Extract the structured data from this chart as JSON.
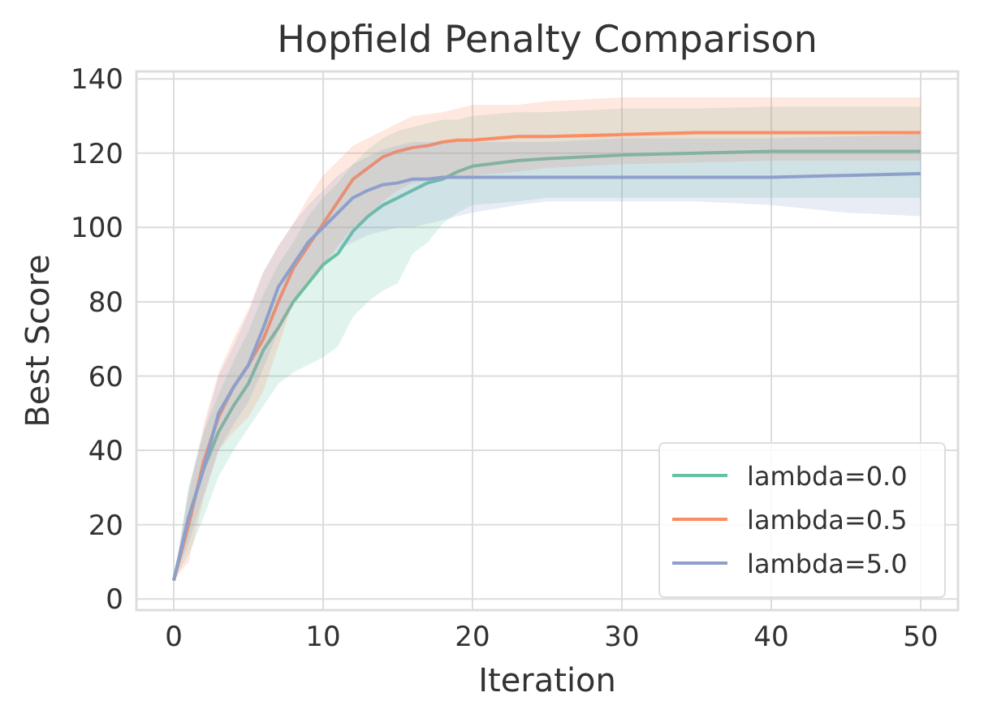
{
  "chart_data": {
    "type": "line",
    "title": "Hopfield Penalty Comparison",
    "xlabel": "Iteration",
    "ylabel": "Best Score",
    "x": [
      0,
      1,
      2,
      3,
      4,
      5,
      6,
      7,
      8,
      9,
      10,
      11,
      12,
      13,
      14,
      15,
      16,
      17,
      18,
      19,
      20,
      23,
      25,
      30,
      35,
      40,
      45,
      50
    ],
    "xlim": [
      -2.5,
      52.5
    ],
    "xticks": [
      0,
      10,
      20,
      30,
      40,
      50
    ],
    "ylim": [
      -3,
      142
    ],
    "yticks": [
      0,
      20,
      40,
      60,
      80,
      100,
      120,
      140
    ],
    "grid": true,
    "legend": "bottom right",
    "line_style": "solid",
    "marker": "none",
    "series": [
      {
        "name": "lambda=0.0",
        "color": "#66c2a5",
        "values": [
          5,
          22,
          35,
          45,
          52,
          58,
          67,
          73,
          80,
          85,
          90,
          93,
          99,
          103,
          106,
          108,
          110,
          112,
          113,
          115,
          116.5,
          118,
          118.5,
          119.5,
          120,
          120.5,
          120.5,
          120.5
        ],
        "lower": [
          5,
          12,
          22,
          33,
          40,
          46,
          52,
          58,
          61,
          63,
          65,
          68,
          76,
          80,
          83,
          85,
          93,
          96,
          101,
          104,
          106,
          107,
          108,
          108,
          108,
          108,
          108,
          108
        ],
        "upper": [
          5,
          30,
          45,
          55,
          64,
          72,
          82,
          90,
          96,
          103,
          108,
          112,
          117,
          121,
          124,
          126,
          127,
          128,
          129,
          129,
          130,
          131,
          131,
          132,
          132,
          132.5,
          132.5,
          132.5
        ]
      },
      {
        "name": "lambda=0.5",
        "color": "#fc8d62",
        "values": [
          5,
          20,
          37,
          49,
          57,
          63,
          70,
          80,
          89,
          95,
          101,
          107,
          113,
          116,
          119,
          120.5,
          121.5,
          122,
          123,
          123.5,
          123.5,
          124.5,
          124.5,
          125,
          125.5,
          125.5,
          125.5,
          125.5
        ],
        "lower": [
          5,
          10,
          27,
          40,
          45,
          49,
          56,
          68,
          80,
          85,
          90,
          95,
          100,
          103,
          107,
          110,
          112,
          112.5,
          113,
          113.5,
          114,
          115,
          116,
          117,
          117.5,
          118,
          118,
          118
        ],
        "upper": [
          5,
          28,
          47,
          61,
          70,
          78,
          88,
          95,
          101,
          108,
          114,
          118,
          122,
          124,
          126,
          128,
          130,
          130.5,
          131,
          132,
          133,
          133,
          134,
          135,
          135,
          135,
          135,
          135
        ]
      },
      {
        "name": "lambda=5.0",
        "color": "#8da0cb",
        "values": [
          5,
          22,
          35,
          50,
          57,
          63,
          73,
          84,
          90,
          96,
          100,
          104,
          108,
          110,
          111.5,
          112,
          113,
          113,
          113.5,
          113.5,
          113.5,
          113.5,
          113.5,
          113.5,
          113.5,
          113.5,
          114,
          114.5
        ],
        "lower": [
          5,
          15,
          28,
          40,
          47,
          53,
          62,
          72,
          80,
          86,
          90,
          94,
          96,
          98,
          99,
          100,
          100,
          101,
          102,
          103,
          104,
          106,
          107,
          107,
          107,
          106,
          104,
          103
        ],
        "upper": [
          5,
          30,
          45,
          60,
          68,
          77,
          88,
          95,
          101,
          106,
          110,
          114,
          117,
          119,
          121,
          122,
          123,
          123,
          123,
          123,
          123,
          123,
          123,
          124,
          124,
          124,
          124.5,
          125
        ]
      }
    ]
  }
}
